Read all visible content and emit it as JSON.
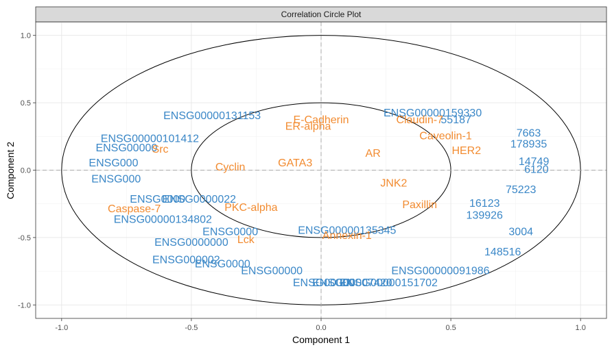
{
  "chart_data": {
    "type": "scatter",
    "title": "Correlation Circle Plot",
    "xlabel": "Component  1",
    "ylabel": "Component  2",
    "xlim": [
      -1.1,
      1.1
    ],
    "ylim": [
      -1.1,
      1.1
    ],
    "xticks": [
      "-1.0",
      "-0.5",
      "0.0",
      "0.5",
      "1.0"
    ],
    "yticks": [
      "-1.0",
      "-0.5",
      "0.0",
      "0.5",
      "1.0"
    ],
    "circles": [
      {
        "radius": 1.0
      },
      {
        "radius": 0.5
      }
    ],
    "grid": true,
    "colors": {
      "gene": "#3a87c7",
      "protein": "#f28b30",
      "panel_border": "#333333",
      "strip": "#d9d9d9"
    },
    "series": [
      {
        "points": [
          {
            "x": -0.42,
            "y": 0.4,
            "label": "ENSG00000131153"
          },
          {
            "x": -0.66,
            "y": 0.23,
            "label": "ENSG00000101412"
          },
          {
            "x": -0.75,
            "y": 0.16,
            "label": "ENSG00000"
          },
          {
            "x": -0.8,
            "y": 0.05,
            "label": "ENSG000"
          },
          {
            "x": -0.79,
            "y": -0.07,
            "label": "ENSG000"
          },
          {
            "x": -0.63,
            "y": -0.22,
            "label": "ENSG0000"
          },
          {
            "x": -0.61,
            "y": -0.37,
            "label": "ENSG00000134802"
          },
          {
            "x": -0.5,
            "y": -0.54,
            "label": "ENSG0000000"
          },
          {
            "x": -0.35,
            "y": -0.46,
            "label": "ENSG0000"
          },
          {
            "x": -0.52,
            "y": -0.67,
            "label": "ENSG000002"
          },
          {
            "x": -0.38,
            "y": -0.7,
            "label": "ENSG0000"
          },
          {
            "x": -0.19,
            "y": -0.75,
            "label": "ENSG00000"
          },
          {
            "x": 0.01,
            "y": -0.84,
            "label": "ENSG00000"
          },
          {
            "x": 0.12,
            "y": -0.84,
            "label": "ENSG00007420"
          },
          {
            "x": 0.26,
            "y": -0.84,
            "label": "ENSG00000151702"
          },
          {
            "x": 0.46,
            "y": -0.75,
            "label": "ENSG00000091986"
          },
          {
            "x": 0.43,
            "y": 0.42,
            "label": "ENSG00000159330"
          },
          {
            "x": 0.52,
            "y": 0.37,
            "label": "55187"
          },
          {
            "x": 0.8,
            "y": 0.27,
            "label": "7663"
          },
          {
            "x": 0.8,
            "y": 0.19,
            "label": "178935"
          },
          {
            "x": 0.82,
            "y": 0.06,
            "label": "14749"
          },
          {
            "x": 0.83,
            "y": 0.0,
            "label": "6120"
          },
          {
            "x": 0.77,
            "y": -0.15,
            "label": "75223"
          },
          {
            "x": 0.63,
            "y": -0.25,
            "label": "16123"
          },
          {
            "x": 0.63,
            "y": -0.34,
            "label": "139926"
          },
          {
            "x": 0.77,
            "y": -0.46,
            "label": "3004"
          },
          {
            "x": 0.7,
            "y": -0.61,
            "label": "148516"
          },
          {
            "x": 0.1,
            "y": -0.45,
            "label": "ENSG00000135345"
          },
          {
            "x": -0.47,
            "y": -0.22,
            "label": "ENSG0000022"
          }
        ]
      },
      {
        "points": [
          {
            "x": 0.0,
            "y": 0.37,
            "label": "E-Cadherin"
          },
          {
            "x": 0.38,
            "y": 0.37,
            "label": "Claudin-7"
          },
          {
            "x": -0.05,
            "y": 0.32,
            "label": "ER-alpha"
          },
          {
            "x": 0.48,
            "y": 0.25,
            "label": "Caveolin-1"
          },
          {
            "x": -0.62,
            "y": 0.15,
            "label": "Src"
          },
          {
            "x": -0.72,
            "y": -0.29,
            "label": "Caspase-7"
          },
          {
            "x": -0.27,
            "y": -0.28,
            "label": "PKC-alpha"
          },
          {
            "x": -0.29,
            "y": -0.52,
            "label": "Lck"
          },
          {
            "x": 0.1,
            "y": -0.49,
            "label": "Annexin-1"
          },
          {
            "x": 0.38,
            "y": -0.26,
            "label": "Paxillin"
          },
          {
            "x": -0.1,
            "y": 0.05,
            "label": "GATA3"
          },
          {
            "x": 0.2,
            "y": 0.12,
            "label": "AR"
          },
          {
            "x": 0.56,
            "y": 0.14,
            "label": "HER2"
          },
          {
            "x": -0.35,
            "y": 0.02,
            "label": "Cyclin"
          },
          {
            "x": 0.28,
            "y": -0.1,
            "label": "JNK2"
          }
        ]
      }
    ]
  },
  "font_note": ""
}
